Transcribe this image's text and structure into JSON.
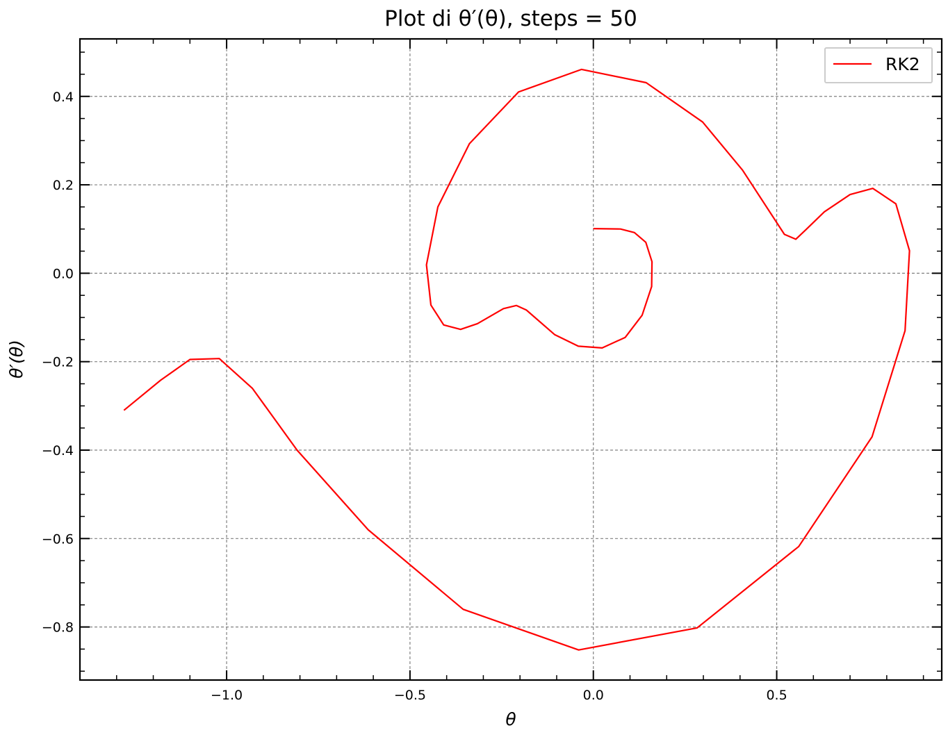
{
  "chart_data": {
    "type": "line",
    "title": "Plot di θ′(θ), steps = 50",
    "xlabel": "θ",
    "ylabel": "θ′(θ)",
    "xlim": [
      -1.4,
      0.95
    ],
    "ylim": [
      -0.92,
      0.53
    ],
    "xticks": [
      -1.0,
      -0.5,
      0.0,
      0.5
    ],
    "xtick_labels": [
      "−1.0",
      "−0.5",
      "0.0",
      "0.5"
    ],
    "yticks": [
      0.4,
      0.2,
      0.0,
      -0.2,
      -0.4,
      -0.6,
      -0.8
    ],
    "ytick_labels": [
      "0.4",
      "0.2",
      "0.0",
      "−0.2",
      "−0.4",
      "−0.6",
      "−0.8"
    ],
    "grid": true,
    "legend_position": "top-right",
    "colors": {
      "RK2": "#ff0000",
      "grid": "#808080"
    },
    "series": [
      {
        "name": "RK2",
        "x": [
          0.0,
          0.074,
          0.112,
          0.143,
          0.16,
          0.159,
          0.133,
          0.087,
          0.024,
          -0.041,
          -0.105,
          -0.183,
          -0.21,
          -0.245,
          -0.316,
          -0.362,
          -0.408,
          -0.443,
          -0.455,
          -0.424,
          -0.338,
          -0.204,
          -0.032,
          0.144,
          0.298,
          0.407,
          0.521,
          0.552,
          0.58,
          0.63,
          0.7,
          0.762,
          0.825,
          0.862,
          0.85,
          0.76,
          0.56,
          0.283,
          -0.04,
          -0.355,
          -0.614,
          -0.808,
          -0.93,
          -1.02,
          -1.1,
          -1.18,
          -1.28
        ],
        "y": [
          0.101,
          0.1,
          0.092,
          0.07,
          0.026,
          -0.03,
          -0.095,
          -0.145,
          -0.169,
          -0.165,
          -0.139,
          -0.083,
          -0.073,
          -0.08,
          -0.114,
          -0.127,
          -0.117,
          -0.072,
          0.019,
          0.15,
          0.293,
          0.41,
          0.461,
          0.431,
          0.342,
          0.233,
          0.088,
          0.077,
          0.099,
          0.139,
          0.178,
          0.192,
          0.157,
          0.051,
          -0.13,
          -0.37,
          -0.618,
          -0.802,
          -0.852,
          -0.76,
          -0.58,
          -0.4,
          -0.26,
          -0.193,
          -0.195,
          -0.242,
          -0.31
        ]
      }
    ]
  }
}
